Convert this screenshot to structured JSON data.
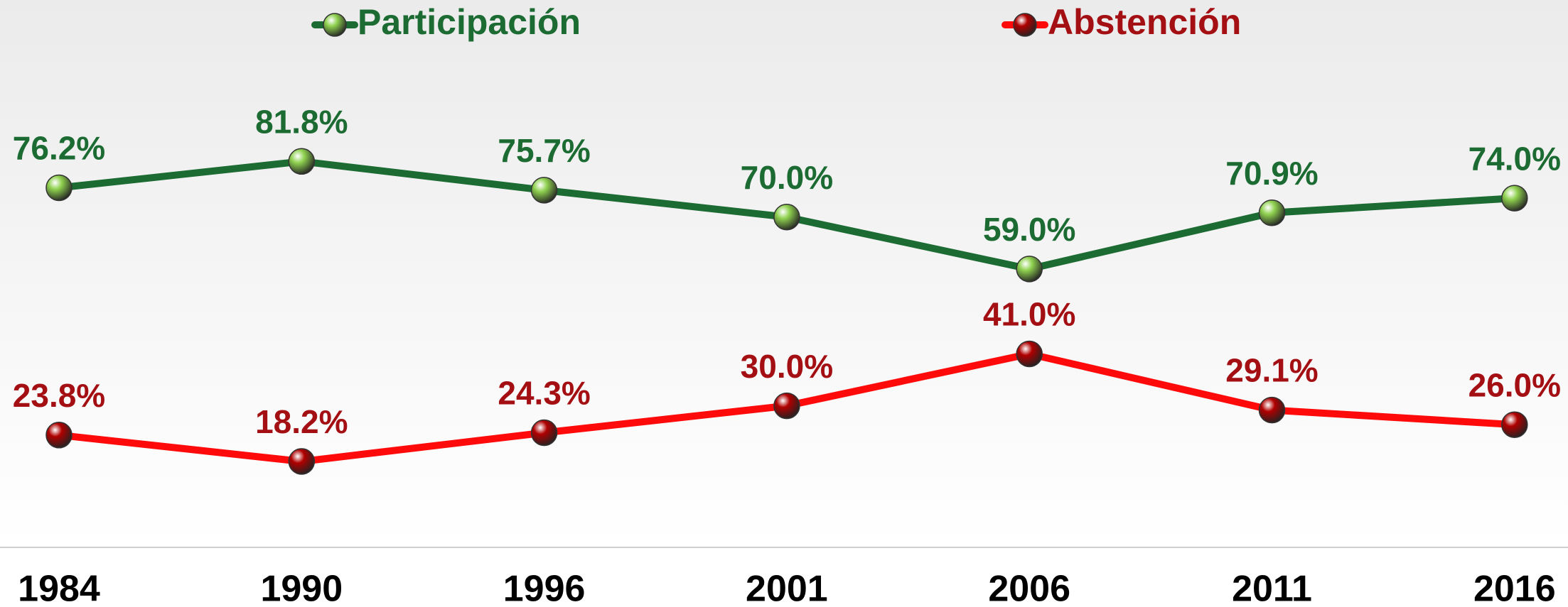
{
  "chart_data": {
    "type": "line",
    "categories": [
      "1984",
      "1990",
      "1996",
      "2001",
      "2006",
      "2011",
      "2016"
    ],
    "series": [
      {
        "name": "Participación",
        "color": "#1b6b32",
        "marker_color": "#8fd14f",
        "label_color": "#1b6b32",
        "values": [
          76.2,
          81.8,
          75.7,
          70.0,
          59.0,
          70.9,
          74.0
        ],
        "value_labels": [
          "76.2%",
          "81.8%",
          "75.7%",
          "70.0%",
          "59.0%",
          "70.9%",
          "74.0%"
        ]
      },
      {
        "name": "Abstención",
        "color": "#ff0a0a",
        "marker_color": "#b00000",
        "label_color": "#a30f12",
        "values": [
          23.8,
          18.2,
          24.3,
          30.0,
          41.0,
          29.1,
          26.0
        ],
        "value_labels": [
          "23.8%",
          "18.2%",
          "24.3%",
          "30.0%",
          "41.0%",
          "29.1%",
          "26.0%"
        ]
      }
    ],
    "ylim": [
      0,
      116
    ],
    "legend": "top"
  }
}
